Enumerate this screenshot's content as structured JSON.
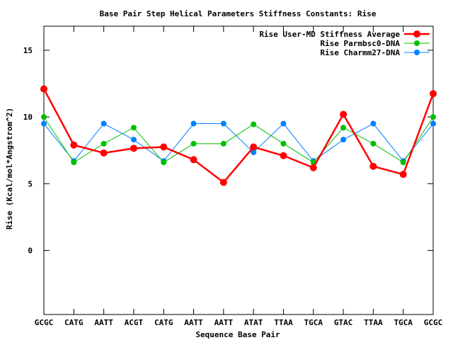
{
  "chart_data": {
    "type": "line",
    "title": "Base Pair Step Helical Parameters Stiffness Constants: Rise",
    "xlabel": "Sequence Base Pair",
    "ylabel": "Rise (Kcal/mol*Angstrom^2)",
    "ylim": [
      -4.8,
      16.8
    ],
    "yticks": [
      0,
      5,
      10,
      15
    ],
    "grid": false,
    "legend_position": "top-right",
    "categories": [
      "GCGC",
      "CATG",
      "AATT",
      "ACGT",
      "CATG",
      "AATT",
      "AATT",
      "ATAT",
      "TTAA",
      "TGCA",
      "GTAC",
      "TTAA",
      "TGCA",
      "GCGC"
    ],
    "series": [
      {
        "name": "Rise User-MD Stiffness Average",
        "color": "#ff0000",
        "thick": true,
        "values": [
          12.1,
          7.9,
          7.3,
          7.65,
          7.75,
          6.8,
          5.1,
          7.75,
          7.1,
          6.2,
          10.2,
          6.3,
          5.7,
          11.75
        ]
      },
      {
        "name": "Rise Parmbsc0-DNA",
        "color": "#00c000",
        "thick": false,
        "values": [
          10.0,
          6.6,
          8.0,
          9.2,
          6.6,
          8.0,
          8.0,
          9.45,
          8.0,
          6.6,
          9.2,
          8.0,
          6.6,
          10.0
        ]
      },
      {
        "name": "Rise Charmm27-DNA",
        "color": "#0080ff",
        "thick": false,
        "values": [
          9.5,
          6.7,
          9.5,
          8.3,
          6.7,
          9.5,
          9.5,
          7.35,
          9.5,
          6.7,
          8.3,
          9.5,
          6.7,
          9.5
        ]
      }
    ]
  }
}
